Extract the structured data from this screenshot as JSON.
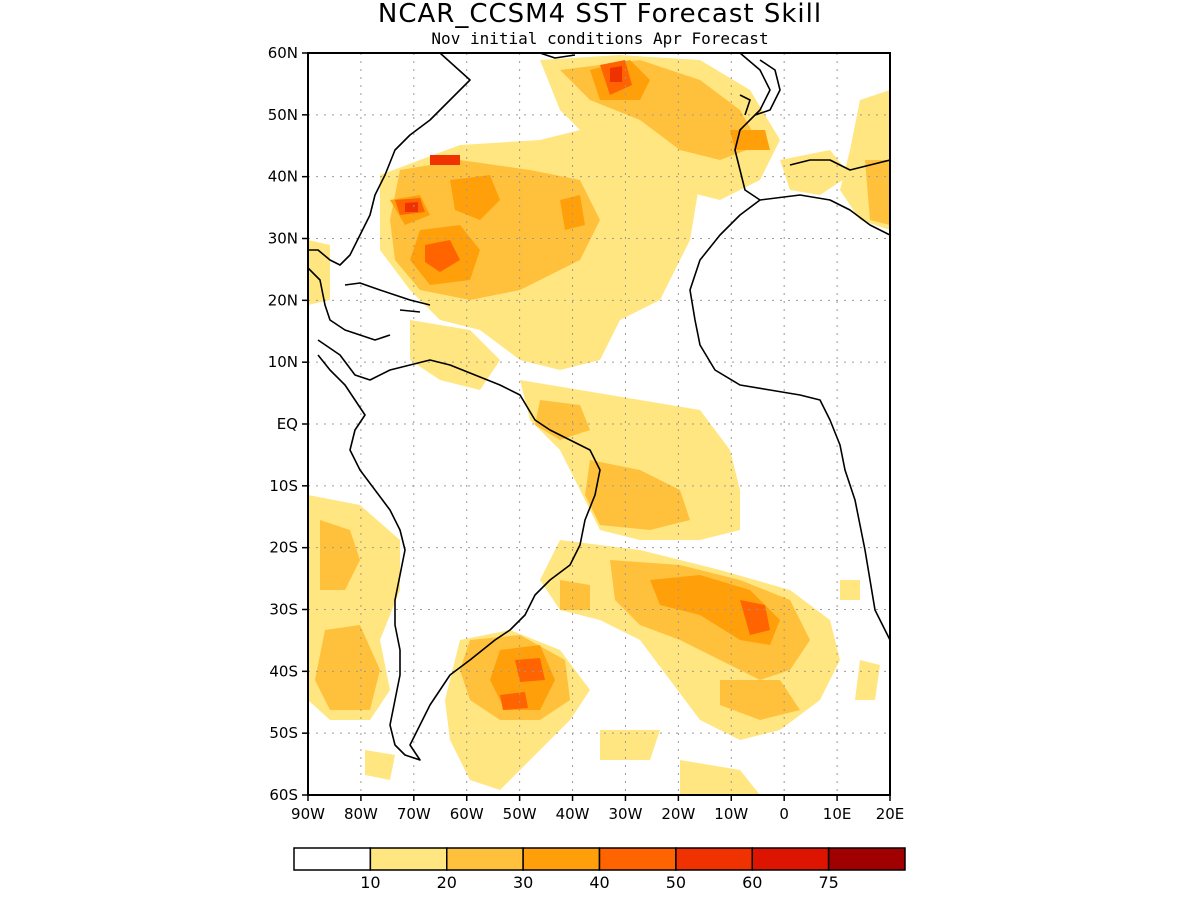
{
  "title": "NCAR_CCSM4 SST Forecast Skill",
  "subtitle": "Nov initial conditions  Apr Forecast",
  "map": {
    "lon_range": [
      -90,
      20
    ],
    "lat_range": [
      -60,
      60
    ],
    "x_ticks": [
      {
        "value": -90,
        "label": "90W"
      },
      {
        "value": -80,
        "label": "80W"
      },
      {
        "value": -70,
        "label": "70W"
      },
      {
        "value": -60,
        "label": "60W"
      },
      {
        "value": -50,
        "label": "50W"
      },
      {
        "value": -40,
        "label": "40W"
      },
      {
        "value": -30,
        "label": "30W"
      },
      {
        "value": -20,
        "label": "20W"
      },
      {
        "value": -10,
        "label": "10W"
      },
      {
        "value": 0,
        "label": "0"
      },
      {
        "value": 10,
        "label": "10E"
      },
      {
        "value": 20,
        "label": "20E"
      }
    ],
    "y_ticks": [
      {
        "value": 60,
        "label": "60N"
      },
      {
        "value": 50,
        "label": "50N"
      },
      {
        "value": 40,
        "label": "40N"
      },
      {
        "value": 30,
        "label": "30N"
      },
      {
        "value": 20,
        "label": "20N"
      },
      {
        "value": 10,
        "label": "10N"
      },
      {
        "value": 0,
        "label": "EQ"
      },
      {
        "value": -10,
        "label": "10S"
      },
      {
        "value": -20,
        "label": "20S"
      },
      {
        "value": -30,
        "label": "30S"
      },
      {
        "value": -40,
        "label": "40S"
      },
      {
        "value": -50,
        "label": "50S"
      },
      {
        "value": -60,
        "label": "60S"
      }
    ],
    "grid": true
  },
  "colorbar": {
    "labels": [
      "10",
      "20",
      "30",
      "40",
      "50",
      "60",
      "75"
    ],
    "colors": [
      "#ffffff",
      "#ffe680",
      "#ffc03c",
      "#ffa00a",
      "#ff6400",
      "#f03200",
      "#dc1400",
      "#a00000"
    ]
  }
}
